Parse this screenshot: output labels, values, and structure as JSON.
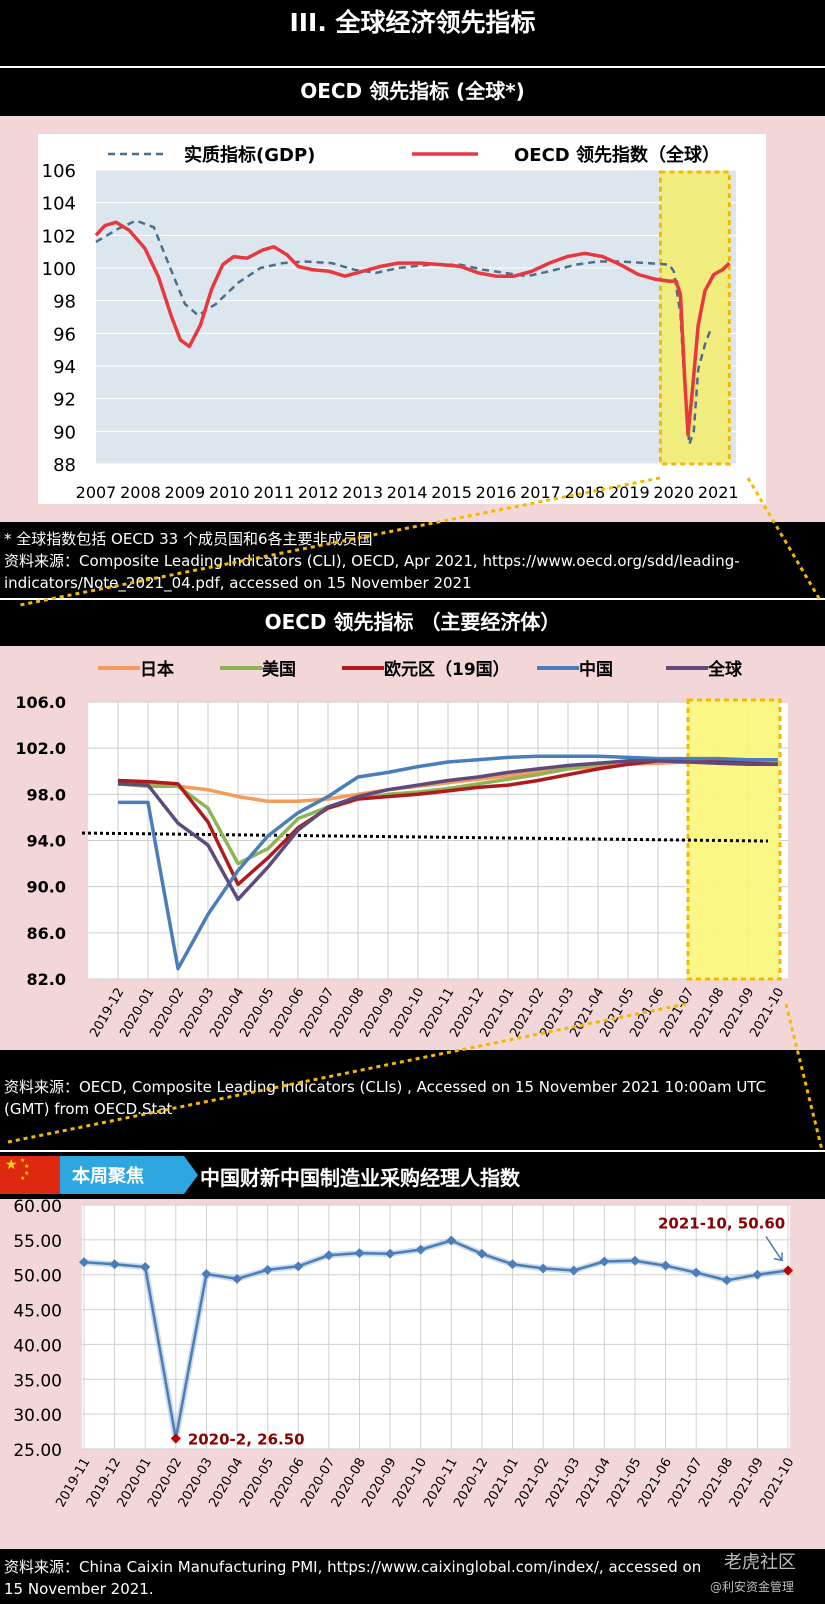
{
  "page": {
    "main_title": "III.  全球经济领先指标"
  },
  "section1": {
    "title": "OECD 领先指标 (全球*)",
    "footnote": "* 全球指数包括 OECD 33 个成员国和6各主要非成员国",
    "source": "资料来源：Composite Leading Indicators (CLI), OECD, Apr 2021, https://www.oecd.org/sdd/leading-indicators/Note_2021_04.pdf, accessed on 15 November 2021",
    "highlight_color": "#f5ec6a"
  },
  "section2": {
    "title": "OECD 领先指标 （主要经济体）",
    "source": "资料来源：OECD, Composite Leading Indicators (CLIs) , Accessed on 15 November 2021 10:00am UTC (GMT) from OECD.Stat"
  },
  "section3": {
    "badge": "本周聚焦",
    "title": "中国财新中国制造业采购经理人指数",
    "source": "资料来源：China Caixin Manufacturing PMI, https://www.caixinglobal.com/index/, accessed on 15 November 2021.",
    "watermark": "老虎社区",
    "watermark2": "@利安资金管理"
  },
  "chart_data": [
    {
      "type": "line",
      "title": "OECD 领先指标 (全球*)",
      "x_ticks": [
        "2007",
        "2008",
        "2009",
        "2010",
        "2011",
        "2012",
        "2013",
        "2014",
        "2015",
        "2016",
        "2017",
        "2018",
        "2019",
        "2020",
        "2021"
      ],
      "y_ticks": [
        "106",
        "104",
        "102",
        "100",
        "98",
        "96",
        "94",
        "92",
        "90",
        "88"
      ],
      "ylim": [
        88,
        106
      ],
      "xlim": [
        2007,
        2021.4
      ],
      "grid": true,
      "legend_position": "top",
      "series": [
        {
          "name": "实质指标(GDP)",
          "color": "#4a6f8a",
          "style": "dashed",
          "points": [
            [
              2007.0,
              101.6
            ],
            [
              2007.5,
              102.4
            ],
            [
              2007.9,
              102.9
            ],
            [
              2008.3,
              102.5
            ],
            [
              2008.7,
              99.8
            ],
            [
              2009.0,
              97.8
            ],
            [
              2009.3,
              97.1
            ],
            [
              2009.7,
              97.8
            ],
            [
              2010.2,
              99.1
            ],
            [
              2010.7,
              100.0
            ],
            [
              2011.2,
              100.3
            ],
            [
              2011.7,
              100.4
            ],
            [
              2012.3,
              100.3
            ],
            [
              2012.8,
              99.9
            ],
            [
              2013.3,
              99.7
            ],
            [
              2013.8,
              100.0
            ],
            [
              2014.5,
              100.2
            ],
            [
              2015.2,
              100.2
            ],
            [
              2015.7,
              99.9
            ],
            [
              2016.2,
              99.7
            ],
            [
              2016.7,
              99.5
            ],
            [
              2017.2,
              99.8
            ],
            [
              2017.8,
              100.2
            ],
            [
              2018.3,
              100.4
            ],
            [
              2018.8,
              100.4
            ],
            [
              2019.4,
              100.3
            ],
            [
              2019.9,
              100.2
            ],
            [
              2020.0,
              99.8
            ],
            [
              2020.15,
              97.2
            ],
            [
              2020.25,
              92.5
            ],
            [
              2020.35,
              89.2
            ],
            [
              2020.45,
              90.0
            ],
            [
              2020.55,
              93.8
            ],
            [
              2020.7,
              95.3
            ],
            [
              2020.85,
              96.4
            ]
          ]
        },
        {
          "name": "OECD 领先指数（全球）",
          "color": "#e8383d",
          "style": "solid",
          "points": [
            [
              2007.0,
              102.0
            ],
            [
              2007.2,
              102.6
            ],
            [
              2007.45,
              102.8
            ],
            [
              2007.75,
              102.3
            ],
            [
              2008.1,
              101.2
            ],
            [
              2008.4,
              99.5
            ],
            [
              2008.7,
              97.0
            ],
            [
              2008.9,
              95.6
            ],
            [
              2009.1,
              95.2
            ],
            [
              2009.35,
              96.5
            ],
            [
              2009.6,
              98.7
            ],
            [
              2009.85,
              100.2
            ],
            [
              2010.1,
              100.7
            ],
            [
              2010.4,
              100.6
            ],
            [
              2010.75,
              101.1
            ],
            [
              2011.0,
              101.3
            ],
            [
              2011.3,
              100.8
            ],
            [
              2011.55,
              100.1
            ],
            [
              2011.85,
              99.9
            ],
            [
              2012.25,
              99.8
            ],
            [
              2012.6,
              99.5
            ],
            [
              2013.0,
              99.8
            ],
            [
              2013.4,
              100.1
            ],
            [
              2013.8,
              100.3
            ],
            [
              2014.3,
              100.3
            ],
            [
              2014.8,
              100.2
            ],
            [
              2015.2,
              100.1
            ],
            [
              2015.6,
              99.7
            ],
            [
              2016.0,
              99.5
            ],
            [
              2016.4,
              99.5
            ],
            [
              2016.8,
              99.8
            ],
            [
              2017.2,
              100.3
            ],
            [
              2017.6,
              100.7
            ],
            [
              2018.0,
              100.9
            ],
            [
              2018.4,
              100.7
            ],
            [
              2018.8,
              100.2
            ],
            [
              2019.2,
              99.6
            ],
            [
              2019.6,
              99.3
            ],
            [
              2019.9,
              99.2
            ],
            [
              2020.05,
              99.2
            ],
            [
              2020.15,
              98.4
            ],
            [
              2020.25,
              93.0
            ],
            [
              2020.32,
              89.8
            ],
            [
              2020.42,
              92.5
            ],
            [
              2020.55,
              96.5
            ],
            [
              2020.7,
              98.6
            ],
            [
              2020.9,
              99.6
            ],
            [
              2021.1,
              99.9
            ],
            [
              2021.25,
              100.3
            ]
          ]
        }
      ],
      "highlight_x_range": [
        2019.7,
        2021.25
      ]
    },
    {
      "type": "line",
      "title": "OECD 领先指标 （主要经济体）",
      "categories": [
        "2019-12",
        "2020-01",
        "2020-02",
        "2020-03",
        "2020-04",
        "2020-05",
        "2020-06",
        "2020-07",
        "2020-08",
        "2020-09",
        "2020-10",
        "2020-11",
        "2020-12",
        "2021-01",
        "2021-02",
        "2021-03",
        "2021-04",
        "2021-05",
        "2021-06",
        "2021-07",
        "2021-08",
        "2021-09",
        "2021-10"
      ],
      "y_ticks": [
        "106.0",
        "102.0",
        "98.0",
        "94.0",
        "90.0",
        "86.0",
        "82.0"
      ],
      "ylim": [
        82,
        106
      ],
      "legend_position": "top",
      "reference_line": 94.3,
      "series": [
        {
          "name": "日本",
          "color": "#f49a5a",
          "values": [
            99.1,
            99.0,
            98.7,
            98.4,
            97.8,
            97.4,
            97.4,
            97.6,
            98.0,
            98.4,
            98.7,
            99.0,
            99.3,
            99.6,
            99.9,
            100.2,
            100.4,
            100.6,
            100.7,
            100.8,
            100.8,
            100.8,
            100.7
          ]
        },
        {
          "name": "美国",
          "color": "#8db455",
          "values": [
            98.9,
            98.7,
            98.7,
            96.8,
            92.0,
            93.3,
            95.9,
            96.9,
            97.6,
            98.0,
            98.2,
            98.5,
            98.9,
            99.3,
            99.7,
            100.2,
            100.6,
            100.9,
            101.0,
            101.0,
            100.9,
            100.8,
            100.7
          ]
        },
        {
          "name": "欧元区（19国）",
          "color": "#b0191e",
          "values": [
            99.2,
            99.1,
            98.9,
            95.6,
            90.2,
            92.5,
            95.1,
            96.8,
            97.6,
            97.8,
            98.0,
            98.3,
            98.6,
            98.8,
            99.2,
            99.7,
            100.2,
            100.6,
            100.9,
            101.0,
            100.9,
            100.7,
            100.6
          ]
        },
        {
          "name": "中国",
          "color": "#4a7ebb",
          "values": [
            97.3,
            97.3,
            82.9,
            87.6,
            91.4,
            94.4,
            96.4,
            97.8,
            99.5,
            99.9,
            100.4,
            100.8,
            101.0,
            101.2,
            101.3,
            101.3,
            101.3,
            101.2,
            101.1,
            101.1,
            101.1,
            101.0,
            101.0
          ]
        },
        {
          "name": "全球",
          "color": "#5e4a7c",
          "values": [
            98.9,
            98.8,
            95.5,
            93.6,
            88.9,
            91.7,
            94.9,
            96.9,
            97.8,
            98.4,
            98.8,
            99.2,
            99.5,
            99.9,
            100.2,
            100.5,
            100.7,
            100.9,
            100.9,
            100.8,
            100.7,
            100.6,
            100.6
          ]
        }
      ],
      "highlight_x_range": [
        "2021-07",
        "2021-10"
      ]
    },
    {
      "type": "line",
      "title": "中国财新中国制造业采购经理人指数",
      "categories": [
        "2019-11",
        "2019-12",
        "2020-01",
        "2020-02",
        "2020-03",
        "2020-04",
        "2020-05",
        "2020-06",
        "2020-07",
        "2020-08",
        "2020-09",
        "2020-10",
        "2020-11",
        "2020-12",
        "2021-01",
        "2021-02",
        "2021-03",
        "2021-04",
        "2021-05",
        "2021-06",
        "2021-07",
        "2021-08",
        "2021-09",
        "2021-10"
      ],
      "values": [
        51.8,
        51.5,
        51.1,
        26.5,
        50.1,
        49.4,
        50.7,
        51.2,
        52.8,
        53.1,
        53.0,
        53.6,
        54.9,
        53.0,
        51.5,
        50.9,
        50.6,
        51.9,
        52.0,
        51.3,
        50.3,
        49.2,
        50.0,
        50.6
      ],
      "y_ticks": [
        "60.00",
        "55.00",
        "50.00",
        "45.00",
        "40.00",
        "35.00",
        "30.00",
        "25.00"
      ],
      "ylim": [
        25,
        60
      ],
      "color": "#4a7ebb",
      "annotations": [
        {
          "label": "2020-2, 26.50",
          "category": "2020-02",
          "value": 26.5
        },
        {
          "label": "2021-10, 50.60",
          "category": "2021-10",
          "value": 50.6
        }
      ]
    }
  ]
}
